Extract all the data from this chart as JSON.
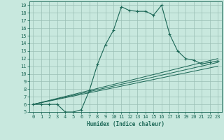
{
  "xlabel": "Humidex (Indice chaleur)",
  "ylabel": "",
  "bg_color": "#c8e8de",
  "grid_color": "#9bbfb5",
  "line_color": "#1a6655",
  "xlim": [
    -0.5,
    23.5
  ],
  "ylim": [
    5,
    19.5
  ],
  "xticks": [
    0,
    1,
    2,
    3,
    4,
    5,
    6,
    7,
    8,
    9,
    10,
    11,
    12,
    13,
    14,
    15,
    16,
    17,
    18,
    19,
    20,
    21,
    22,
    23
  ],
  "yticks": [
    5,
    6,
    7,
    8,
    9,
    10,
    11,
    12,
    13,
    14,
    15,
    16,
    17,
    18,
    19
  ],
  "line1_x": [
    0,
    1,
    2,
    3,
    4,
    5,
    6,
    7,
    8,
    9,
    10,
    11,
    12,
    13,
    14,
    15,
    16,
    17,
    18,
    19,
    20,
    21,
    22,
    23
  ],
  "line1_y": [
    6,
    6,
    6,
    6,
    5,
    5,
    5.3,
    7.8,
    11.2,
    13.8,
    15.7,
    18.8,
    18.3,
    18.2,
    18.2,
    17.7,
    19.0,
    15.2,
    13.0,
    12.0,
    11.8,
    11.3,
    11.5,
    11.7
  ],
  "line2_x": [
    0,
    23
  ],
  "line2_y": [
    6,
    12.0
  ],
  "line3_x": [
    0,
    23
  ],
  "line3_y": [
    6,
    11.5
  ],
  "line4_x": [
    0,
    23
  ],
  "line4_y": [
    6,
    11.0
  ],
  "marker_x": [
    0,
    1,
    2,
    3,
    4,
    5,
    6,
    7,
    8,
    9,
    10,
    11,
    12,
    13,
    14,
    15,
    16,
    17,
    18,
    19,
    20,
    21,
    22,
    23
  ],
  "marker_y": [
    6,
    6,
    6,
    6,
    5,
    5,
    5.3,
    7.8,
    11.2,
    13.8,
    15.7,
    18.8,
    18.3,
    18.2,
    18.2,
    17.7,
    19.0,
    15.2,
    13.0,
    12.0,
    11.8,
    11.3,
    11.5,
    11.7
  ]
}
